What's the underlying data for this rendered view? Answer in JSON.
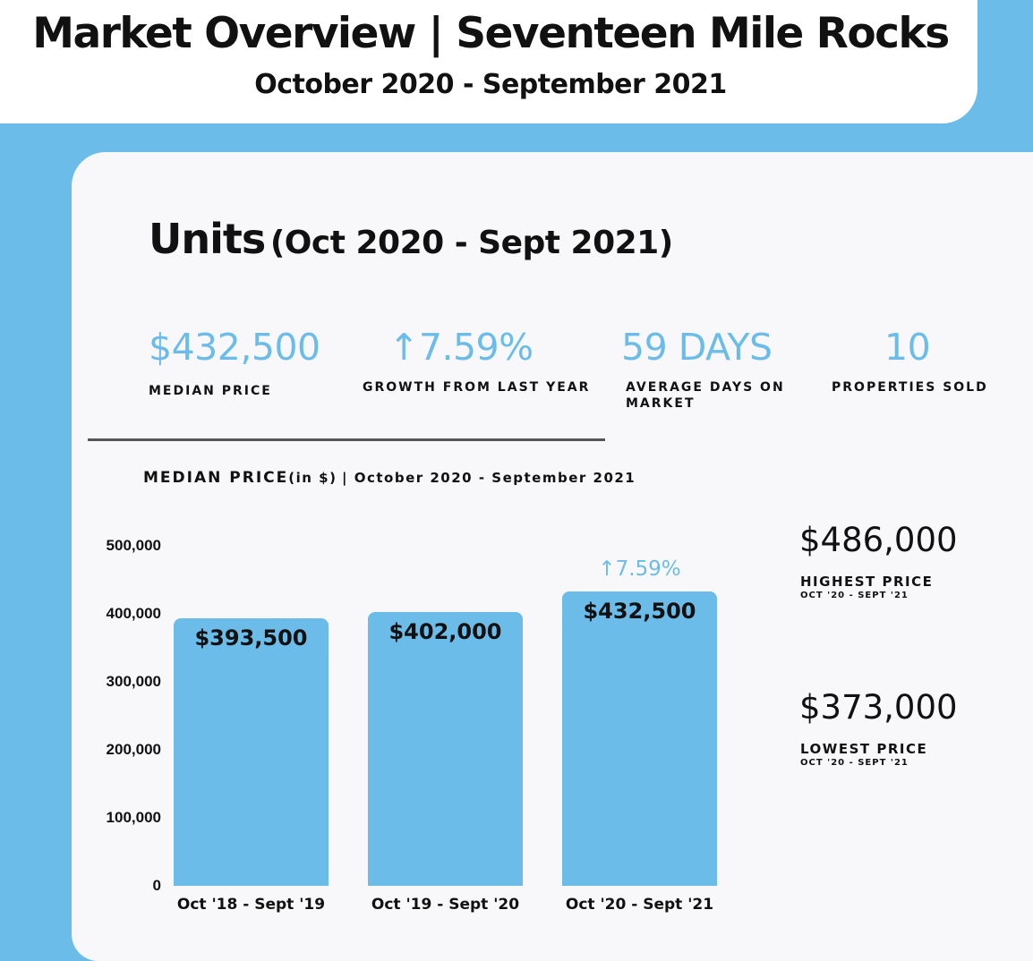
{
  "header": {
    "title": "Market Overview | Seventeen Mile Rocks",
    "subtitle": "October 2020 - September 2021"
  },
  "section": {
    "title": "Units",
    "period": "(Oct 2020 - Sept 2021)"
  },
  "stats": [
    {
      "value": "$432,500",
      "label": "MEDIAN PRICE"
    },
    {
      "value": "↑7.59%",
      "label": "GROWTH FROM LAST YEAR"
    },
    {
      "value": "59 DAYS",
      "label": "AVERAGE DAYS ON MARKET"
    },
    {
      "value": "10",
      "label": "PROPERTIES SOLD"
    }
  ],
  "colors": {
    "accent": "#6cbcea",
    "card": "#f8f8fa",
    "text": "#111111"
  },
  "chart_data": {
    "type": "bar",
    "title": "MEDIAN PRICE",
    "title_unit": "(in $)",
    "title_period": "| October 2020 - September 2021",
    "categories": [
      "Oct '18 - Sept '19",
      "Oct '19 - Sept '20",
      "Oct '20 - Sept '21"
    ],
    "values": [
      393500,
      402000,
      432500
    ],
    "value_labels": [
      "$393,500",
      "$402,000",
      "$432,500"
    ],
    "yticks": [
      0,
      100000,
      200000,
      300000,
      400000,
      500000
    ],
    "ytick_labels": [
      "0",
      "100,000",
      "200,000",
      "300,000",
      "400,000",
      "500,000"
    ],
    "ylim": [
      0,
      500000
    ],
    "annotation": {
      "category_index": 2,
      "text": "↑7.59%"
    },
    "grid": false,
    "legend": "none"
  },
  "side": {
    "highest": {
      "value": "$486,000",
      "label": "HIGHEST PRICE",
      "period": "OCT '20 - SEPT '21"
    },
    "lowest": {
      "value": "$373,000",
      "label": "LOWEST PRICE",
      "period": "OCT '20 - SEPT '21"
    }
  }
}
